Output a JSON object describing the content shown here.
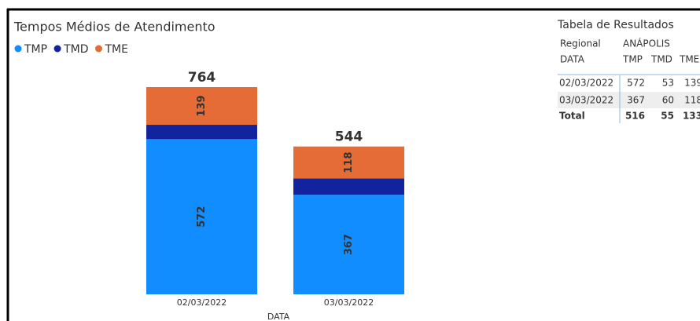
{
  "chart_data": {
    "type": "stacked_bar",
    "title": "Tempos Médios de Atendimento",
    "x_label": "DATA",
    "categories": [
      "02/03/2022",
      "03/03/2022"
    ],
    "series": [
      {
        "name": "TMP",
        "color": "#118dff",
        "values": [
          572,
          367
        ],
        "show_labels": true
      },
      {
        "name": "TMD",
        "color": "#12239e",
        "values": [
          53,
          60
        ],
        "show_labels": false
      },
      {
        "name": "TME",
        "color": "#e66c37",
        "values": [
          139,
          118
        ],
        "show_labels": true
      }
    ],
    "totals": [
      764,
      544
    ]
  },
  "table": {
    "title": "Tabela de Resultados",
    "header": [
      [
        "Regional",
        "ANÁPOLIS"
      ],
      [
        "DATA",
        "TMP",
        "TMD",
        "TME"
      ]
    ],
    "rows": [
      [
        "02/03/2022",
        572,
        53,
        139
      ],
      [
        "03/03/2022",
        367,
        60,
        118
      ]
    ],
    "total": [
      "Total",
      516,
      55,
      133
    ]
  }
}
